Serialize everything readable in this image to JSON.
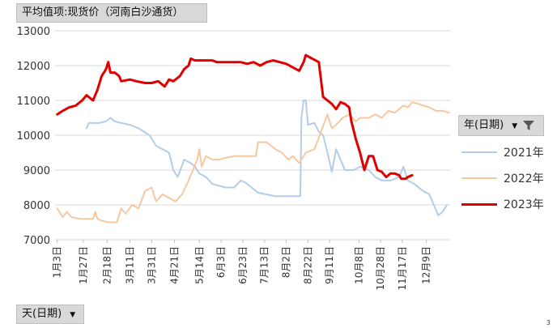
{
  "filters": {
    "value_field": "平均值项:现货价（河南白沙通货）",
    "axis_field": "天(日期)",
    "legend_field": "年(日期)"
  },
  "icons": {
    "dropdown": "dropdown-arrow-icon",
    "filter": "filter-funnel-icon"
  },
  "corner_mark": "3",
  "chart_data": {
    "type": "line",
    "title": "",
    "xlabel": "",
    "ylabel": "",
    "x_ticks": [
      {
        "day": 3,
        "label": "1月3日"
      },
      {
        "day": 27,
        "label": "1月27日"
      },
      {
        "day": 49,
        "label": "2月18日"
      },
      {
        "day": 70,
        "label": "3月11日"
      },
      {
        "day": 90,
        "label": "3月31日"
      },
      {
        "day": 111,
        "label": "4月21日"
      },
      {
        "day": 134,
        "label": "5月14日"
      },
      {
        "day": 154,
        "label": "6月3日"
      },
      {
        "day": 174,
        "label": "6月23日"
      },
      {
        "day": 194,
        "label": "7月13日"
      },
      {
        "day": 214,
        "label": "8月2日"
      },
      {
        "day": 234,
        "label": "8月22日"
      },
      {
        "day": 254,
        "label": "9月11日"
      },
      {
        "day": 281,
        "label": "10月8日"
      },
      {
        "day": 301,
        "label": "10月28日"
      },
      {
        "day": 321,
        "label": "11月17日"
      },
      {
        "day": 343,
        "label": "12月9日"
      }
    ],
    "xlim": [
      1,
      365
    ],
    "ylim": [
      7000,
      13000
    ],
    "y_ticks": [
      7000,
      8000,
      9000,
      10000,
      11000,
      12000,
      13000
    ],
    "grid": "horizontal",
    "legend_position": "right",
    "series": [
      {
        "name": "2021年",
        "color": "#b4cde6",
        "width": 2,
        "points": [
          [
            30,
            10200
          ],
          [
            32,
            10350
          ],
          [
            42,
            10350
          ],
          [
            48,
            10400
          ],
          [
            52,
            10500
          ],
          [
            56,
            10400
          ],
          [
            62,
            10350
          ],
          [
            70,
            10300
          ],
          [
            78,
            10200
          ],
          [
            88,
            10000
          ],
          [
            94,
            9700
          ],
          [
            100,
            9600
          ],
          [
            106,
            9500
          ],
          [
            110,
            9000
          ],
          [
            114,
            8800
          ],
          [
            120,
            9300
          ],
          [
            126,
            9200
          ],
          [
            130,
            9100
          ],
          [
            134,
            8900
          ],
          [
            140,
            8800
          ],
          [
            146,
            8600
          ],
          [
            152,
            8550
          ],
          [
            158,
            8500
          ],
          [
            166,
            8500
          ],
          [
            172,
            8700
          ],
          [
            176,
            8650
          ],
          [
            182,
            8500
          ],
          [
            188,
            8350
          ],
          [
            196,
            8300
          ],
          [
            204,
            8250
          ],
          [
            212,
            8250
          ],
          [
            222,
            8250
          ],
          [
            227,
            8250
          ],
          [
            228,
            10500
          ],
          [
            230,
            11000
          ],
          [
            232,
            11000
          ],
          [
            234,
            10300
          ],
          [
            240,
            10350
          ],
          [
            244,
            10100
          ],
          [
            248,
            10000
          ],
          [
            252,
            9500
          ],
          [
            256,
            8950
          ],
          [
            260,
            9600
          ],
          [
            264,
            9300
          ],
          [
            268,
            9000
          ],
          [
            276,
            9000
          ],
          [
            282,
            9100
          ],
          [
            290,
            9000
          ],
          [
            296,
            8800
          ],
          [
            302,
            8700
          ],
          [
            310,
            8700
          ],
          [
            318,
            8800
          ],
          [
            322,
            9100
          ],
          [
            326,
            8700
          ],
          [
            332,
            8600
          ],
          [
            340,
            8400
          ],
          [
            346,
            8300
          ],
          [
            350,
            8000
          ],
          [
            354,
            7700
          ],
          [
            358,
            7800
          ],
          [
            362,
            8000
          ]
        ]
      },
      {
        "name": "2022年",
        "color": "#f7c7a0",
        "width": 2,
        "points": [
          [
            3,
            7900
          ],
          [
            8,
            7650
          ],
          [
            12,
            7800
          ],
          [
            16,
            7650
          ],
          [
            24,
            7600
          ],
          [
            30,
            7600
          ],
          [
            36,
            7600
          ],
          [
            38,
            7800
          ],
          [
            40,
            7600
          ],
          [
            44,
            7550
          ],
          [
            50,
            7500
          ],
          [
            58,
            7500
          ],
          [
            62,
            7900
          ],
          [
            66,
            7750
          ],
          [
            72,
            8000
          ],
          [
            78,
            7900
          ],
          [
            84,
            8400
          ],
          [
            90,
            8500
          ],
          [
            94,
            8100
          ],
          [
            100,
            8300
          ],
          [
            106,
            8200
          ],
          [
            112,
            8100
          ],
          [
            118,
            8300
          ],
          [
            124,
            8700
          ],
          [
            128,
            9000
          ],
          [
            132,
            9300
          ],
          [
            134,
            9600
          ],
          [
            136,
            9100
          ],
          [
            140,
            9400
          ],
          [
            146,
            9300
          ],
          [
            152,
            9300
          ],
          [
            158,
            9350
          ],
          [
            166,
            9400
          ],
          [
            172,
            9400
          ],
          [
            178,
            9400
          ],
          [
            186,
            9400
          ],
          [
            188,
            9800
          ],
          [
            196,
            9800
          ],
          [
            204,
            9600
          ],
          [
            210,
            9500
          ],
          [
            216,
            9300
          ],
          [
            220,
            9400
          ],
          [
            226,
            9200
          ],
          [
            232,
            9500
          ],
          [
            240,
            9600
          ],
          [
            246,
            10100
          ],
          [
            252,
            10600
          ],
          [
            256,
            10200
          ],
          [
            260,
            10300
          ],
          [
            266,
            10500
          ],
          [
            272,
            10600
          ],
          [
            278,
            10400
          ],
          [
            282,
            10500
          ],
          [
            290,
            10500
          ],
          [
            296,
            10600
          ],
          [
            302,
            10500
          ],
          [
            308,
            10700
          ],
          [
            314,
            10650
          ],
          [
            318,
            10750
          ],
          [
            322,
            10850
          ],
          [
            326,
            10800
          ],
          [
            330,
            10950
          ],
          [
            336,
            10900
          ],
          [
            340,
            10850
          ],
          [
            346,
            10800
          ],
          [
            352,
            10700
          ],
          [
            358,
            10700
          ],
          [
            364,
            10650
          ]
        ]
      },
      {
        "name": "2023年",
        "color": "#e00000",
        "width": 3,
        "points": [
          [
            3,
            10600
          ],
          [
            8,
            10700
          ],
          [
            14,
            10800
          ],
          [
            20,
            10850
          ],
          [
            26,
            11000
          ],
          [
            30,
            11150
          ],
          [
            36,
            11000
          ],
          [
            40,
            11300
          ],
          [
            44,
            11700
          ],
          [
            48,
            11900
          ],
          [
            50,
            12100
          ],
          [
            52,
            11800
          ],
          [
            56,
            11800
          ],
          [
            60,
            11700
          ],
          [
            62,
            11550
          ],
          [
            70,
            11600
          ],
          [
            76,
            11550
          ],
          [
            84,
            11500
          ],
          [
            90,
            11500
          ],
          [
            96,
            11550
          ],
          [
            102,
            11400
          ],
          [
            106,
            11600
          ],
          [
            110,
            11550
          ],
          [
            116,
            11700
          ],
          [
            120,
            11900
          ],
          [
            124,
            12000
          ],
          [
            126,
            12200
          ],
          [
            130,
            12150
          ],
          [
            136,
            12150
          ],
          [
            146,
            12150
          ],
          [
            150,
            12100
          ],
          [
            160,
            12100
          ],
          [
            172,
            12100
          ],
          [
            178,
            12050
          ],
          [
            184,
            12100
          ],
          [
            190,
            12000
          ],
          [
            196,
            12100
          ],
          [
            202,
            12150
          ],
          [
            208,
            12100
          ],
          [
            214,
            12050
          ],
          [
            220,
            11950
          ],
          [
            226,
            11850
          ],
          [
            230,
            12100
          ],
          [
            232,
            12300
          ],
          [
            238,
            12200
          ],
          [
            244,
            12100
          ],
          [
            248,
            11100
          ],
          [
            252,
            11000
          ],
          [
            256,
            10900
          ],
          [
            260,
            10750
          ],
          [
            264,
            10950
          ],
          [
            268,
            10900
          ],
          [
            272,
            10800
          ],
          [
            274,
            10400
          ],
          [
            278,
            9900
          ],
          [
            282,
            9500
          ],
          [
            286,
            9000
          ],
          [
            290,
            9400
          ],
          [
            294,
            9400
          ],
          [
            298,
            9000
          ],
          [
            302,
            8950
          ],
          [
            306,
            8800
          ],
          [
            310,
            8900
          ],
          [
            314,
            8900
          ],
          [
            318,
            8850
          ],
          [
            320,
            8750
          ],
          [
            324,
            8750
          ],
          [
            326,
            8800
          ],
          [
            330,
            8850
          ]
        ]
      }
    ]
  }
}
